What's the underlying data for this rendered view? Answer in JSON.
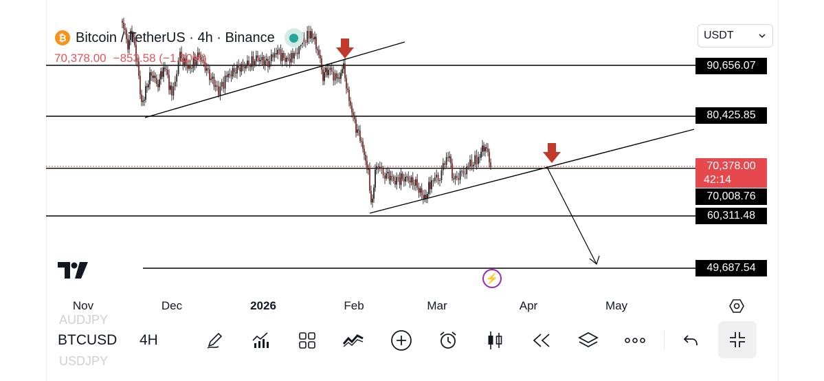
{
  "header": {
    "coin_symbol": "₿",
    "title": "Bitcoin / TetherUS · 4h · Binance",
    "last_price": "70,378.00",
    "change": "−853.58 (−1.20%)"
  },
  "currency_select": {
    "value": "USDT",
    "icon": "chevron-down-icon"
  },
  "price_levels": [
    {
      "price": 90656.07,
      "label": "90,656.07"
    },
    {
      "price": 80425.85,
      "label": "80,425.85"
    },
    {
      "price": 70008.76,
      "label": "70,008.76"
    },
    {
      "price": 60311.48,
      "label": "60,311.48"
    },
    {
      "price": 49687.54,
      "label": "49,687.54"
    }
  ],
  "current_price": {
    "price": 70378.0,
    "label": "70,378.00",
    "countdown": "42:14",
    "color": "#e5484d"
  },
  "x_axis": [
    {
      "label": "Nov",
      "bold": false
    },
    {
      "label": "Dec",
      "bold": false
    },
    {
      "label": "2026",
      "bold": true
    },
    {
      "label": "Feb",
      "bold": false
    },
    {
      "label": "Mar",
      "bold": false
    },
    {
      "label": "Apr",
      "bold": false
    },
    {
      "label": "May",
      "bold": false
    }
  ],
  "annotations": {
    "arrow_color": "#c0392b",
    "trendlines": 2,
    "projection_target": 49687.54
  },
  "bottom_bar": {
    "symbol": "BTCUSD",
    "interval": "4H",
    "ghost_above": "AUDJPY",
    "ghost_below": "USDJPY",
    "tools": [
      "pencil-icon",
      "indicators-icon",
      "grid-icon",
      "pattern-icon",
      "add-icon",
      "alarm-icon",
      "candles-icon",
      "replay-icon",
      "layers-icon",
      "more-icon",
      "undo-icon",
      "collapse-icon"
    ]
  },
  "colors": {
    "up": "#26a69a",
    "down": "#e5484d",
    "candle": "#222222",
    "live_dot": "#26a69a",
    "bolt": "#9c27b0"
  }
}
